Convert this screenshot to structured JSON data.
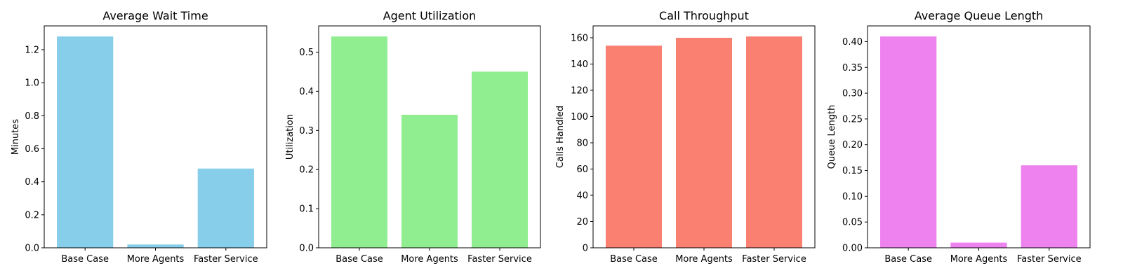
{
  "chart_data": [
    {
      "type": "bar",
      "title": "Average Wait Time",
      "xlabel": "",
      "ylabel": "Minutes",
      "categories": [
        "Base Case",
        "More Agents",
        "Faster Service"
      ],
      "values": [
        1.28,
        0.02,
        0.48
      ],
      "ylim": [
        0,
        1.344
      ],
      "yticks": [
        0.0,
        0.2,
        0.4,
        0.6,
        0.8,
        1.0,
        1.2
      ],
      "ytick_labels": [
        "0.0",
        "0.2",
        "0.4",
        "0.6",
        "0.8",
        "1.0",
        "1.2"
      ],
      "color": "#87CEEB",
      "grid": false,
      "legend": "none"
    },
    {
      "type": "bar",
      "title": "Agent Utilization",
      "xlabel": "",
      "ylabel": "Utilization",
      "categories": [
        "Base Case",
        "More Agents",
        "Faster Service"
      ],
      "values": [
        0.54,
        0.34,
        0.45
      ],
      "ylim": [
        0,
        0.567
      ],
      "yticks": [
        0.0,
        0.1,
        0.2,
        0.3,
        0.4,
        0.5
      ],
      "ytick_labels": [
        "0.0",
        "0.1",
        "0.2",
        "0.3",
        "0.4",
        "0.5"
      ],
      "color": "#90EE90",
      "grid": false,
      "legend": "none"
    },
    {
      "type": "bar",
      "title": "Call Throughput",
      "xlabel": "",
      "ylabel": "Calls Handled",
      "categories": [
        "Base Case",
        "More Agents",
        "Faster Service"
      ],
      "values": [
        154,
        160,
        161
      ],
      "ylim": [
        0,
        169.05
      ],
      "yticks": [
        0,
        20,
        40,
        60,
        80,
        100,
        120,
        140,
        160
      ],
      "ytick_labels": [
        "0",
        "20",
        "40",
        "60",
        "80",
        "100",
        "120",
        "140",
        "160"
      ],
      "color": "#FA8072",
      "grid": false,
      "legend": "none"
    },
    {
      "type": "bar",
      "title": "Average Queue Length",
      "xlabel": "",
      "ylabel": "Queue Length",
      "categories": [
        "Base Case",
        "More Agents",
        "Faster Service"
      ],
      "values": [
        0.41,
        0.01,
        0.16
      ],
      "ylim": [
        0,
        0.4305
      ],
      "yticks": [
        0.0,
        0.05,
        0.1,
        0.15,
        0.2,
        0.25,
        0.3,
        0.35,
        0.4
      ],
      "ytick_labels": [
        "0.00",
        "0.05",
        "0.10",
        "0.15",
        "0.20",
        "0.25",
        "0.30",
        "0.35",
        "0.40"
      ],
      "color": "#EE82EE",
      "grid": false,
      "legend": "none"
    }
  ]
}
